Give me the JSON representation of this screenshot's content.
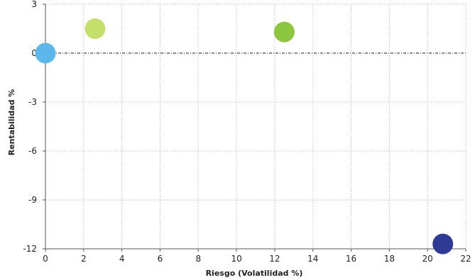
{
  "chart_data": {
    "type": "scatter",
    "title": "",
    "xlabel": "Riesgo (Volatilidad %)",
    "ylabel": "Rentabilidad %",
    "xlim": [
      0,
      22
    ],
    "ylim": [
      -12,
      3
    ],
    "x_ticks": [
      0,
      2,
      4,
      6,
      8,
      10,
      12,
      14,
      16,
      18,
      20,
      22
    ],
    "y_ticks": [
      3,
      0,
      -3,
      -6,
      -9,
      -12
    ],
    "grid": true,
    "legend": "none",
    "points": [
      {
        "x": 0.0,
        "y": 0.0,
        "color": "#5bb8e8"
      },
      {
        "x": 2.6,
        "y": 1.5,
        "color": "#c4e06a"
      },
      {
        "x": 12.5,
        "y": 1.3,
        "color": "#8cc63e"
      },
      {
        "x": 20.8,
        "y": -11.7,
        "color": "#2e3a94"
      }
    ]
  }
}
